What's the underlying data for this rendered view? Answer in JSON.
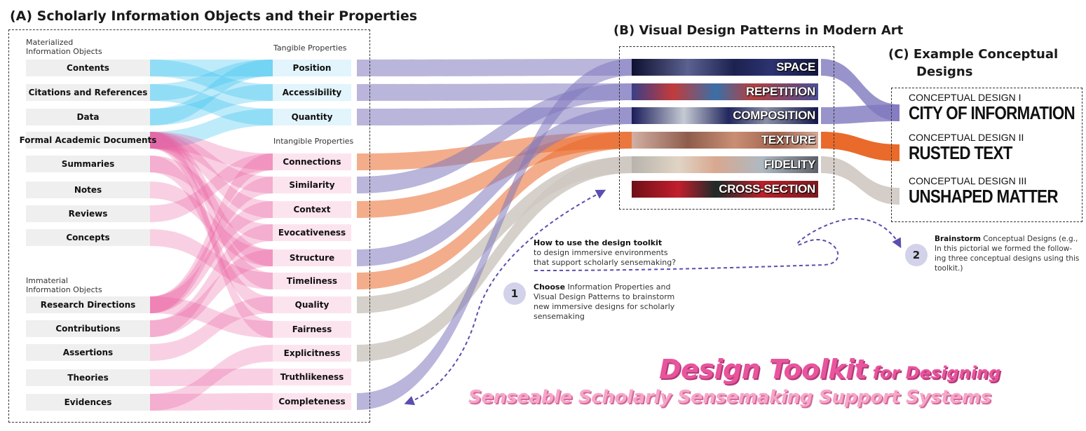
{
  "section_a": {
    "title": "(A) Scholarly Information Objects and their Properties",
    "materialized_label_1": "Materialized",
    "materialized_label_2": "Information Objects",
    "immaterial_label_1": "Immaterial",
    "immaterial_label_2": "Information Objects",
    "tangible_label": "Tangible Properties",
    "intangible_label": "Intangible Properties",
    "materialized_objects": [
      "Contents",
      "Citations and References",
      "Data",
      "Formal Academic Documents",
      "Summaries",
      "Notes",
      "Reviews",
      "Concepts"
    ],
    "immaterial_objects": [
      "Research Directions",
      "Contributions",
      "Assertions",
      "Theories",
      "Evidences"
    ],
    "tangible_properties": [
      "Position",
      "Accessibility",
      "Quantity"
    ],
    "intangible_properties": [
      "Connections",
      "Similarity",
      "Context",
      "Evocativeness",
      "Structure",
      "Timeliness",
      "Quality",
      "Fairness",
      "Explicitness",
      "Truthlikeness",
      "Completeness"
    ]
  },
  "section_b": {
    "title": "(B) Visual Design Patterns in Modern Art",
    "patterns": [
      "SPACE",
      "REPETITION",
      "COMPOSITION",
      "TEXTURE",
      "FIDELITY",
      "CROSS-SECTION"
    ]
  },
  "section_c": {
    "title_1": "(C) Example Conceptual",
    "title_2": "Designs",
    "designs": [
      {
        "caption": "CONCEPTUAL DESIGN I",
        "name": "CITY OF INFORMATION"
      },
      {
        "caption": "CONCEPTUAL DESIGN II",
        "name": "RUSTED TEXT"
      },
      {
        "caption": "CONCEPTUAL DESIGN III",
        "name": "UNSHAPED MATTER"
      }
    ]
  },
  "howto": {
    "line_1": "How to use the design toolkit",
    "line_2": "to design immersive environments",
    "line_3": "that support scholarly sensemaking?"
  },
  "step1": {
    "number": "1",
    "bold": "Choose",
    "line_1": " Information Properties and",
    "line_2": "Visual Design Patterns to brainstorm",
    "line_3": "new immersive designs for scholarly",
    "line_4": "sensemaking"
  },
  "step2": {
    "number": "2",
    "bold": "Brainstorm",
    "line_1": " Conceptual Designs (e.g.,",
    "line_2": "In this pictorial we formed the follow-",
    "line_3": "ing three conceptual designs using this",
    "line_4": "toolkit.)"
  },
  "main_title": {
    "line_1_big": "Design Toolkit",
    "line_1_small": " for Designing",
    "line_2": "Senseable Scholarly Sensemaking Support Systems"
  },
  "colors": {
    "tangible_flow": "#36c0ef",
    "intangible_flow": "#e8559c",
    "pattern_flow": "#7f78be",
    "texture_flow": "#e96a2b",
    "fidelity_flow": "#cfc8c2",
    "title_pink": "#e8559c",
    "title_light_pink": "#f6a6c8",
    "dashed_arrow": "#5a4fb0"
  },
  "links": {
    "object_to_tangible": [
      [
        0,
        0
      ],
      [
        0,
        1
      ],
      [
        1,
        0
      ],
      [
        1,
        2
      ],
      [
        2,
        0
      ],
      [
        2,
        1
      ],
      [
        3,
        2
      ]
    ],
    "object_to_intangible": [
      [
        3,
        0
      ],
      [
        3,
        1
      ],
      [
        3,
        2
      ],
      [
        3,
        4
      ],
      [
        3,
        5
      ],
      [
        3,
        7
      ],
      [
        4,
        3
      ],
      [
        4,
        6
      ],
      [
        5,
        4
      ],
      [
        6,
        0
      ],
      [
        7,
        5
      ],
      [
        8,
        0
      ],
      [
        8,
        1
      ],
      [
        8,
        2
      ],
      [
        8,
        7
      ],
      [
        9,
        4
      ],
      [
        9,
        3
      ],
      [
        10,
        6
      ],
      [
        11,
        9
      ],
      [
        12,
        10
      ],
      [
        12,
        8
      ]
    ],
    "property_to_pattern": [
      [
        "t",
        0,
        0
      ],
      [
        "t",
        1,
        1
      ],
      [
        "t",
        2,
        2
      ],
      [
        "i",
        0,
        3
      ],
      [
        "i",
        1,
        1
      ],
      [
        "i",
        2,
        3
      ],
      [
        "i",
        4,
        2
      ],
      [
        "i",
        5,
        3
      ],
      [
        "i",
        6,
        4
      ],
      [
        "i",
        8,
        4
      ],
      [
        "i",
        10,
        0
      ]
    ],
    "pattern_to_design": [
      [
        0,
        0
      ],
      [
        2,
        0
      ],
      [
        3,
        1
      ],
      [
        4,
        2
      ]
    ]
  }
}
